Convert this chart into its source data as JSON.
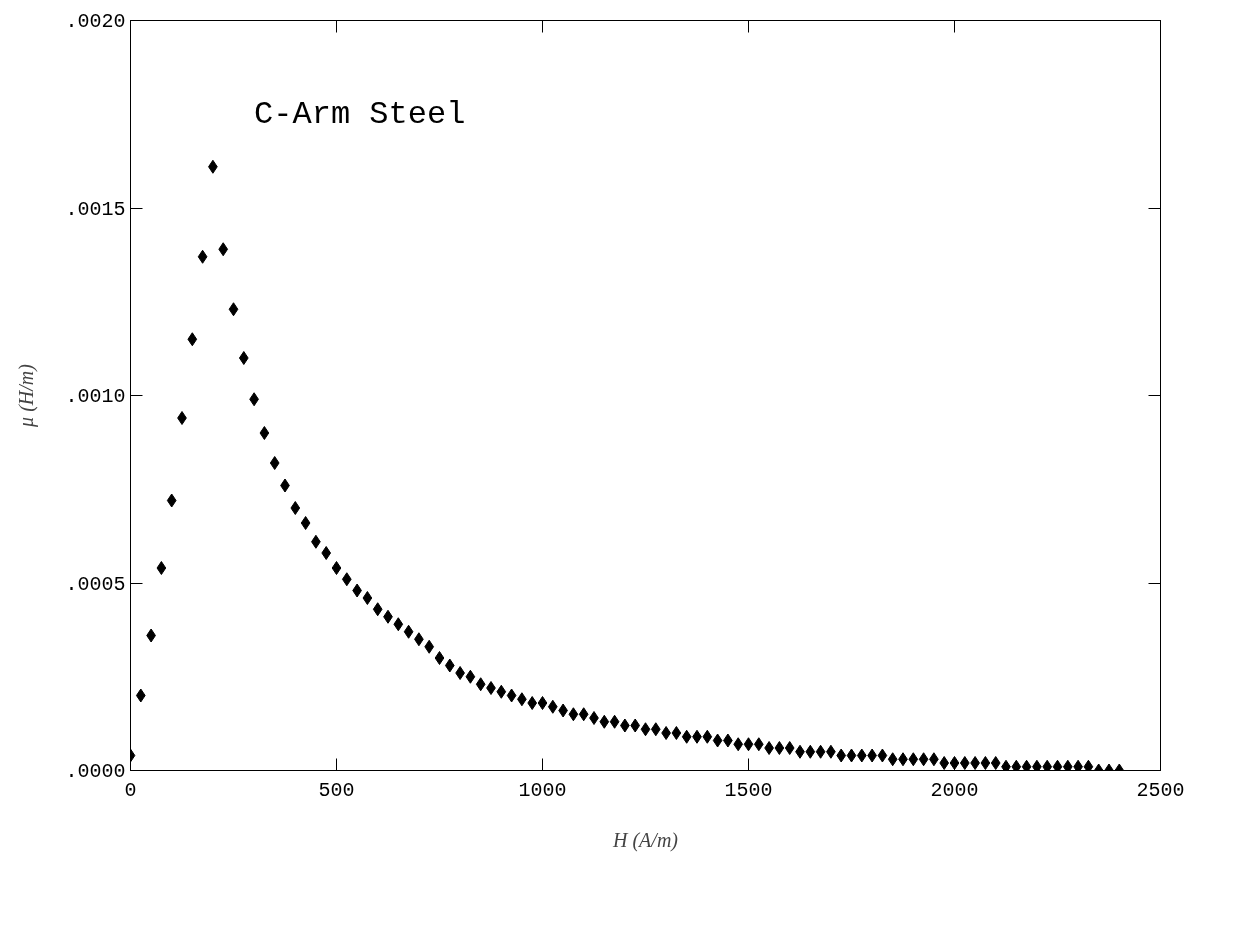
{
  "chart_data": {
    "type": "scatter",
    "title": "C-Arm Steel",
    "xlabel": "H (A/m)",
    "ylabel": "μ (H/m)",
    "x": [
      0,
      25,
      50,
      75,
      100,
      125,
      150,
      175,
      200,
      225,
      250,
      275,
      300,
      325,
      350,
      375,
      400,
      425,
      450,
      475,
      500,
      525,
      550,
      575,
      600,
      625,
      650,
      675,
      700,
      725,
      750,
      775,
      800,
      825,
      850,
      875,
      900,
      925,
      950,
      975,
      1000,
      1025,
      1050,
      1075,
      1100,
      1125,
      1150,
      1175,
      1200,
      1225,
      1250,
      1275,
      1300,
      1325,
      1350,
      1375,
      1400,
      1425,
      1450,
      1475,
      1500,
      1525,
      1550,
      1575,
      1600,
      1625,
      1650,
      1675,
      1700,
      1725,
      1750,
      1775,
      1800,
      1825,
      1850,
      1875,
      1900,
      1925,
      1950,
      1975,
      2000,
      2025,
      2050,
      2075,
      2100,
      2125,
      2150,
      2175,
      2200,
      2225,
      2250,
      2275,
      2300,
      2325,
      2350,
      2375,
      2400
    ],
    "series": [
      {
        "color": "#000000",
        "values": [
          4e-05,
          0.0002,
          0.00036,
          0.00054,
          0.00072,
          0.00094,
          0.00115,
          0.00137,
          0.00161,
          0.00139,
          0.00123,
          0.0011,
          0.00099,
          0.0009,
          0.00082,
          0.00076,
          0.0007,
          0.00066,
          0.00061,
          0.00058,
          0.00054,
          0.00051,
          0.00048,
          0.00046,
          0.00043,
          0.00041,
          0.00039,
          0.00037,
          0.00035,
          0.00033,
          0.0003,
          0.00028,
          0.00026,
          0.00025,
          0.00023,
          0.00022,
          0.00021,
          0.0002,
          0.00019,
          0.00018,
          0.00018,
          0.00017,
          0.00016,
          0.00015,
          0.00015,
          0.00014,
          0.00013,
          0.00013,
          0.00012,
          0.00012,
          0.00011,
          0.00011,
          0.0001,
          0.0001,
          9e-05,
          9e-05,
          9e-05,
          8e-05,
          8e-05,
          7e-05,
          7e-05,
          7e-05,
          6e-05,
          6e-05,
          6e-05,
          5e-05,
          5e-05,
          5e-05,
          5e-05,
          4e-05,
          4e-05,
          4e-05,
          4e-05,
          4e-05,
          3e-05,
          3e-05,
          3e-05,
          3e-05,
          3e-05,
          2e-05,
          2e-05,
          2e-05,
          2e-05,
          2e-05,
          2e-05,
          1e-05,
          1e-05,
          1e-05,
          1e-05,
          1e-05,
          1e-05,
          1e-05,
          1e-05,
          1e-05,
          0.0,
          0.0,
          0.0
        ]
      }
    ],
    "xlim": [
      0,
      2500
    ],
    "xticks": [
      0,
      500,
      1000,
      1500,
      2000,
      2500
    ],
    "ylim": [
      0,
      0.002
    ],
    "yticks": [
      {
        "value": 0,
        "label": ".0000"
      },
      {
        "value": 0.0005,
        "label": ".0005"
      },
      {
        "value": 0.001,
        "label": ".0010"
      },
      {
        "value": 0.0015,
        "label": ".0015"
      },
      {
        "value": 0.002,
        "label": ".0020"
      }
    ],
    "marker": "diamond",
    "grid": false
  }
}
